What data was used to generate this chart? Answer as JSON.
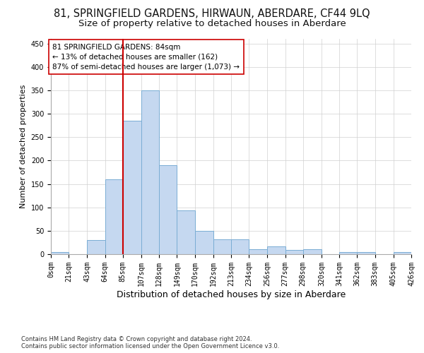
{
  "title": "81, SPRINGFIELD GARDENS, HIRWAUN, ABERDARE, CF44 9LQ",
  "subtitle": "Size of property relative to detached houses in Aberdare",
  "xlabel": "Distribution of detached houses by size in Aberdare",
  "ylabel": "Number of detached properties",
  "footer_line1": "Contains HM Land Registry data © Crown copyright and database right 2024.",
  "footer_line2": "Contains public sector information licensed under the Open Government Licence v3.0.",
  "bin_edges": [
    0,
    21,
    43,
    64,
    85,
    107,
    128,
    149,
    170,
    192,
    213,
    234,
    256,
    277,
    298,
    320,
    341,
    362,
    383,
    405,
    426
  ],
  "bin_labels": [
    "0sqm",
    "21sqm",
    "43sqm",
    "64sqm",
    "85sqm",
    "107sqm",
    "128sqm",
    "149sqm",
    "170sqm",
    "192sqm",
    "213sqm",
    "234sqm",
    "256sqm",
    "277sqm",
    "298sqm",
    "320sqm",
    "341sqm",
    "362sqm",
    "383sqm",
    "405sqm",
    "426sqm"
  ],
  "bar_heights": [
    4,
    0,
    30,
    160,
    285,
    350,
    190,
    93,
    50,
    32,
    32,
    11,
    16,
    9,
    10,
    0,
    5,
    5,
    0,
    5
  ],
  "bar_color": "#c5d8f0",
  "bar_edge_color": "#7aadd4",
  "property_line_x": 85,
  "annotation_text": "81 SPRINGFIELD GARDENS: 84sqm\n← 13% of detached houses are smaller (162)\n87% of semi-detached houses are larger (1,073) →",
  "annotation_box_color": "#ffffff",
  "annotation_box_edge": "#cc0000",
  "line_color": "#cc0000",
  "ylim": [
    0,
    460
  ],
  "background_color": "#ffffff",
  "grid_color": "#d0d0d0",
  "title_fontsize": 10.5,
  "subtitle_fontsize": 9.5,
  "ylabel_fontsize": 8,
  "xlabel_fontsize": 9,
  "tick_fontsize": 7,
  "annotation_fontsize": 7.5,
  "footer_fontsize": 6
}
